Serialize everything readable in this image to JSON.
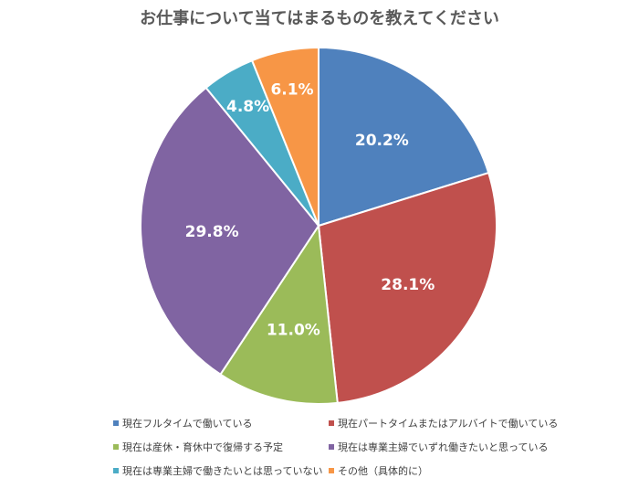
{
  "chart_data": {
    "type": "pie",
    "title": "お仕事について当てはまるものを教えてください",
    "legend_position": "bottom",
    "slices": [
      {
        "label": "現在フルタイムで働いている",
        "value": 20.2,
        "display": "20.2%",
        "color": "#4f81bd"
      },
      {
        "label": "現在パートタイムまたはアルバイトで働いている",
        "value": 28.1,
        "display": "28.1%",
        "color": "#c0504d"
      },
      {
        "label": "現在は産休・育休中で復帰する予定",
        "value": 11.0,
        "display": "11.0%",
        "color": "#9bbb59"
      },
      {
        "label": "現在は専業主婦でいずれ働きたいと思っている",
        "value": 29.8,
        "display": "29.8%",
        "color": "#8064a2"
      },
      {
        "label": "現在は専業主婦で働きたいとは思っていない",
        "value": 4.8,
        "display": "4.8%",
        "color": "#4bacc6"
      },
      {
        "label": "その他（具体的に）",
        "value": 6.1,
        "display": "6.1%",
        "color": "#f79646"
      }
    ]
  }
}
